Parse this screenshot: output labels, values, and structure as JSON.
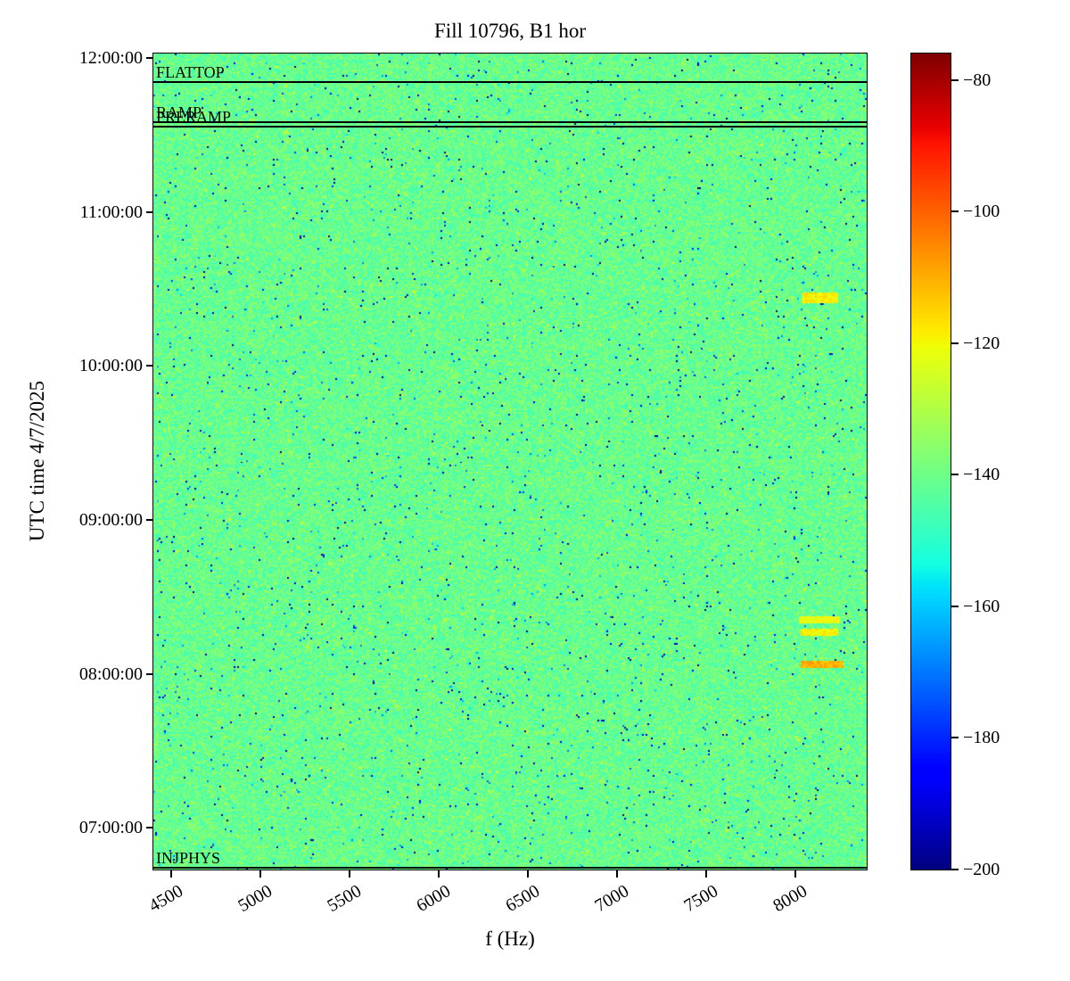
{
  "chart_data": {
    "type": "heatmap",
    "title": "Fill 10796, B1 hor",
    "xlabel": "f (Hz)",
    "ylabel": "UTC time 4/7/2025",
    "x_range_hz": [
      4400,
      8400
    ],
    "x_ticks": [
      {
        "value": 4500,
        "label": "4500"
      },
      {
        "value": 5000,
        "label": "5000"
      },
      {
        "value": 5500,
        "label": "5500"
      },
      {
        "value": 6000,
        "label": "6000"
      },
      {
        "value": 6500,
        "label": "6500"
      },
      {
        "value": 7000,
        "label": "7000"
      },
      {
        "value": 7500,
        "label": "7500"
      },
      {
        "value": 8000,
        "label": "8000"
      }
    ],
    "time_range_hours": [
      6.73,
      12.03
    ],
    "y_ticks": [
      {
        "hour": 12,
        "label": "12:00:00"
      },
      {
        "hour": 11,
        "label": "11:00:00"
      },
      {
        "hour": 10,
        "label": "10:00:00"
      },
      {
        "hour": 9,
        "label": "09:00:00"
      },
      {
        "hour": 8,
        "label": "08:00:00"
      },
      {
        "hour": 7,
        "label": "07:00:00"
      }
    ],
    "colorbar": {
      "colormap": "jet",
      "vmin": -200,
      "vmax": -76,
      "ticks": [
        {
          "value": -80,
          "label": "−80"
        },
        {
          "value": -100,
          "label": "−100"
        },
        {
          "value": -120,
          "label": "−120"
        },
        {
          "value": -140,
          "label": "−140"
        },
        {
          "value": -160,
          "label": "−160"
        },
        {
          "value": -180,
          "label": "−180"
        },
        {
          "value": -200,
          "label": "−200"
        }
      ]
    },
    "background_level_db": -141,
    "noise_spread_db": 7,
    "seed": 20250407,
    "beam_modes": [
      {
        "label": "FLATTOP",
        "hour": 11.848
      },
      {
        "label": "RAMP",
        "hour": 11.588
      },
      {
        "label": "PRERAMP",
        "hour": 11.558
      },
      {
        "label": "INJPHYS",
        "hour": 6.745
      }
    ],
    "streaks": [
      {
        "f_start_hz": 8040,
        "f_end_hz": 8230,
        "hour": 10.445,
        "duration_hours": 0.055,
        "level_db": -119
      },
      {
        "f_start_hz": 8020,
        "f_end_hz": 8240,
        "hour": 8.355,
        "duration_hours": 0.04,
        "level_db": -121
      },
      {
        "f_start_hz": 8030,
        "f_end_hz": 8230,
        "hour": 8.27,
        "duration_hours": 0.035,
        "level_db": -119
      },
      {
        "f_start_hz": 8030,
        "f_end_hz": 8260,
        "hour": 8.065,
        "duration_hours": 0.03,
        "level_db": -110
      }
    ]
  }
}
